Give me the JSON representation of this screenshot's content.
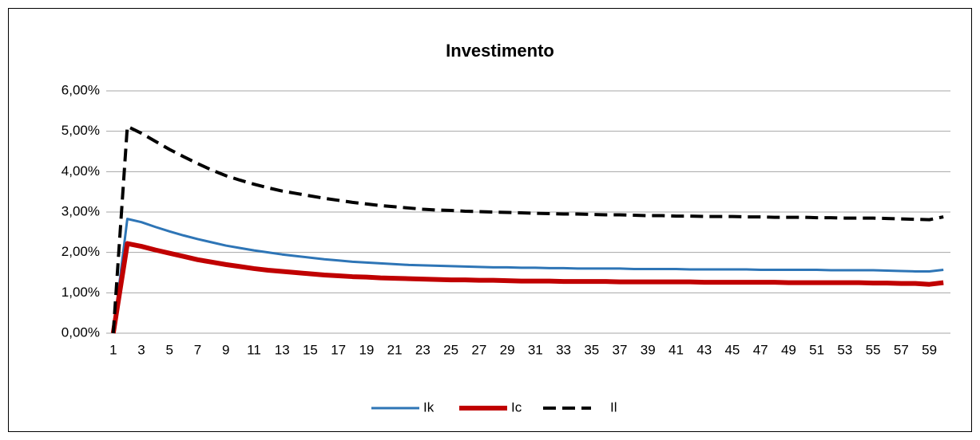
{
  "chart_data": {
    "type": "line",
    "title": "Investimento",
    "categories": [
      1,
      null,
      3,
      null,
      5,
      null,
      7,
      null,
      9,
      null,
      11,
      null,
      13,
      null,
      15,
      null,
      17,
      null,
      19,
      null,
      21,
      null,
      23,
      null,
      25,
      null,
      27,
      null,
      29,
      null,
      31,
      null,
      33,
      null,
      35,
      null,
      37,
      null,
      39,
      null,
      41,
      null,
      43,
      null,
      45,
      null,
      47,
      null,
      49,
      null,
      51,
      null,
      53,
      null,
      55,
      null,
      57,
      null,
      59,
      null
    ],
    "series": [
      {
        "name": "Ik",
        "color": "#2e75b6",
        "dashed": false,
        "values": [
          0,
          2.83,
          2.75,
          2.63,
          2.52,
          2.42,
          2.33,
          2.25,
          2.17,
          2.11,
          2.05,
          2.0,
          1.95,
          1.91,
          1.87,
          1.83,
          1.8,
          1.77,
          1.75,
          1.73,
          1.71,
          1.69,
          1.68,
          1.67,
          1.66,
          1.65,
          1.64,
          1.63,
          1.63,
          1.62,
          1.62,
          1.61,
          1.61,
          1.6,
          1.6,
          1.6,
          1.6,
          1.59,
          1.59,
          1.59,
          1.59,
          1.58,
          1.58,
          1.58,
          1.58,
          1.58,
          1.57,
          1.57,
          1.57,
          1.57,
          1.57,
          1.56,
          1.56,
          1.56,
          1.56,
          1.55,
          1.54,
          1.53,
          1.53,
          1.57
        ]
      },
      {
        "name": "Ic",
        "color": "#c00000",
        "dashed": false,
        "values": [
          0,
          2.22,
          2.15,
          2.06,
          1.98,
          1.9,
          1.82,
          1.76,
          1.7,
          1.65,
          1.6,
          1.56,
          1.53,
          1.5,
          1.47,
          1.44,
          1.42,
          1.4,
          1.39,
          1.37,
          1.36,
          1.35,
          1.34,
          1.33,
          1.32,
          1.32,
          1.31,
          1.31,
          1.3,
          1.29,
          1.29,
          1.29,
          1.28,
          1.28,
          1.28,
          1.28,
          1.27,
          1.27,
          1.27,
          1.27,
          1.27,
          1.27,
          1.26,
          1.26,
          1.26,
          1.26,
          1.26,
          1.26,
          1.25,
          1.25,
          1.25,
          1.25,
          1.25,
          1.25,
          1.24,
          1.24,
          1.23,
          1.23,
          1.21,
          1.25
        ]
      },
      {
        "name": "Il",
        "color": "#000000",
        "dashed": true,
        "values": [
          0,
          5.12,
          4.95,
          4.75,
          4.55,
          4.37,
          4.2,
          4.04,
          3.9,
          3.79,
          3.69,
          3.6,
          3.52,
          3.46,
          3.4,
          3.34,
          3.29,
          3.24,
          3.2,
          3.16,
          3.13,
          3.1,
          3.07,
          3.05,
          3.04,
          3.02,
          3.01,
          3.0,
          2.99,
          2.98,
          2.97,
          2.96,
          2.95,
          2.95,
          2.94,
          2.93,
          2.93,
          2.92,
          2.91,
          2.91,
          2.9,
          2.9,
          2.89,
          2.89,
          2.89,
          2.88,
          2.88,
          2.87,
          2.87,
          2.87,
          2.86,
          2.86,
          2.85,
          2.85,
          2.85,
          2.84,
          2.83,
          2.82,
          2.81,
          2.88
        ]
      }
    ],
    "ylim": [
      0,
      6
    ],
    "yticks": [
      {
        "value": 0,
        "label": "0,00%"
      },
      {
        "value": 1,
        "label": "1,00%"
      },
      {
        "value": 2,
        "label": "2,00%"
      },
      {
        "value": 3,
        "label": "3,00%"
      },
      {
        "value": 4,
        "label": "4,00%"
      },
      {
        "value": 5,
        "label": "5,00%"
      },
      {
        "value": 6,
        "label": "6,00%"
      }
    ],
    "grid": true,
    "legend": "bottom"
  }
}
